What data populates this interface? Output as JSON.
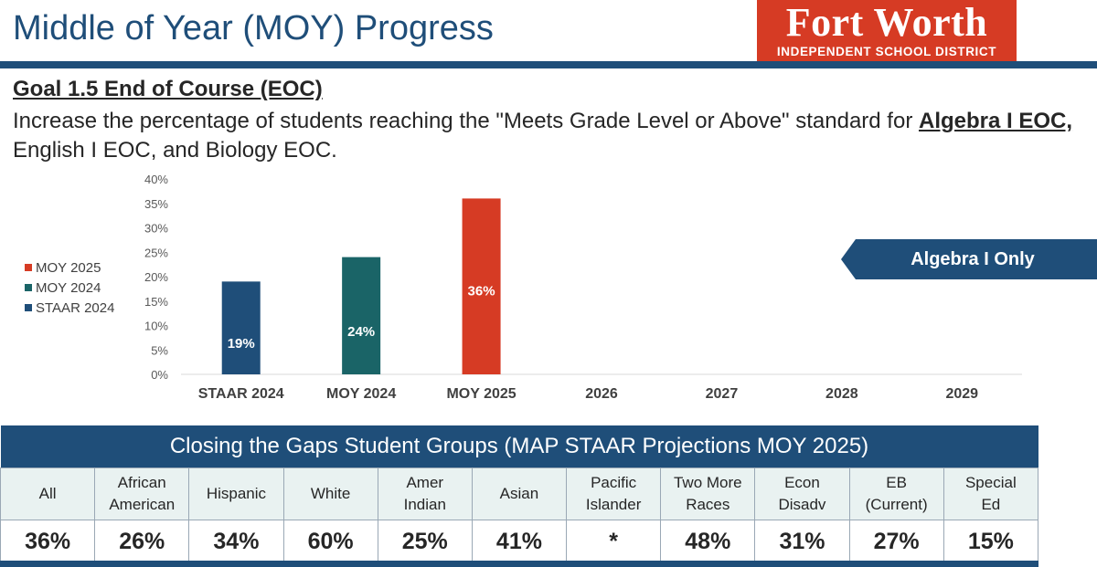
{
  "header": {
    "title": "Middle of Year (MOY) Progress",
    "logo": {
      "main": "Fort Worth",
      "sub": "INDEPENDENT SCHOOL DISTRICT",
      "color": "#d63b24"
    }
  },
  "goal": {
    "heading": "Goal 1.5 End of Course (EOC)",
    "desc_part1": "Increase the percentage of students reaching the \"Meets Grade Level or Above\" standard for",
    "desc_bold": "Algebra I EOC,",
    "desc_part2": "English I EOC, and Biology EOC."
  },
  "callout": {
    "label": "Algebra I Only"
  },
  "chart_data": {
    "type": "bar",
    "categories": [
      "STAAR 2024",
      "MOY 2024",
      "MOY 2025",
      "2026",
      "2027",
      "2028",
      "2029"
    ],
    "values": [
      19,
      24,
      36,
      null,
      null,
      null,
      null
    ],
    "data_labels": [
      "19%",
      "24%",
      "36%",
      "",
      "",
      "",
      ""
    ],
    "bar_colors": [
      "#1f4e79",
      "#1a6467",
      "#d63b24"
    ],
    "ylim": [
      0,
      40
    ],
    "yticks": [
      0,
      5,
      10,
      15,
      20,
      25,
      30,
      35,
      40
    ],
    "ytick_labels": [
      "0%",
      "5%",
      "10%",
      "15%",
      "20%",
      "25%",
      "30%",
      "35%",
      "40%"
    ],
    "legend": [
      {
        "name": "MOY 2025",
        "color": "#d63b24"
      },
      {
        "name": "MOY 2024",
        "color": "#1a6467"
      },
      {
        "name": "STAAR 2024",
        "color": "#1f4e79"
      }
    ],
    "legend_position": "left",
    "grid": false
  },
  "gaps": {
    "title": "Closing the Gaps Student Groups (MAP STAAR Projections MOY 2025)",
    "groups": [
      {
        "label": [
          "All"
        ],
        "value": "36%"
      },
      {
        "label": [
          "African",
          "American"
        ],
        "value": "26%"
      },
      {
        "label": [
          "Hispanic"
        ],
        "value": "34%"
      },
      {
        "label": [
          "White"
        ],
        "value": "60%"
      },
      {
        "label": [
          "Amer",
          "Indian"
        ],
        "value": "25%"
      },
      {
        "label": [
          "Asian"
        ],
        "value": "41%"
      },
      {
        "label": [
          "Pacific",
          "Islander"
        ],
        "value": "*"
      },
      {
        "label": [
          "Two More",
          "Races"
        ],
        "value": "48%"
      },
      {
        "label": [
          "Econ",
          "Disadv"
        ],
        "value": "31%"
      },
      {
        "label": [
          "EB",
          "(Current)"
        ],
        "value": "27%"
      },
      {
        "label": [
          "Special",
          "Ed"
        ],
        "value": "15%"
      }
    ]
  }
}
